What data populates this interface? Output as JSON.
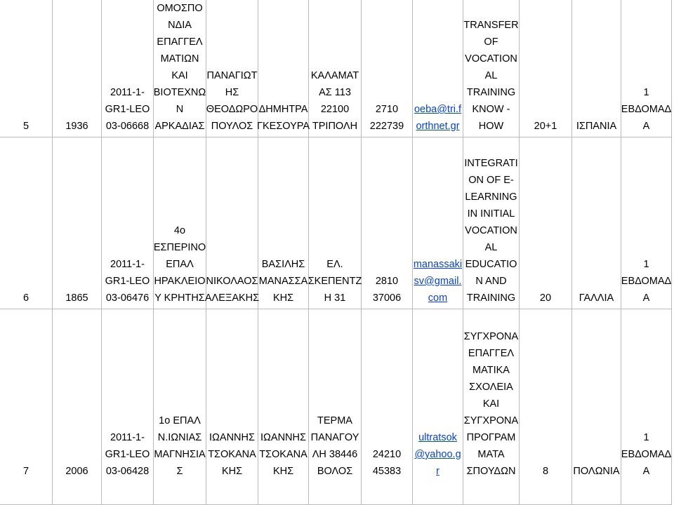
{
  "table": {
    "rows": [
      [
        [
          "5"
        ],
        [
          "1936"
        ],
        [
          "2011-1-",
          "GR1-LEO",
          "03-06668"
        ],
        [
          "ΟΜΟΣΠΟ",
          "ΝΔΙΑ",
          "ΕΠΑΓΓΕΛ",
          "ΜΑΤΙΩΝ",
          "ΚΑΙ",
          "ΒΙΟΤΕΧΝΩ",
          "Ν",
          "ΑΡΚΑΔΙΑΣ"
        ],
        [
          "ΠΑΝΑΓΙΩΤ",
          "ΗΣ",
          "ΘΕΟΔΩΡΟ",
          "ΠΟΥΛΟΣ"
        ],
        [
          "ΔΗΜΗΤΡΑ",
          "ΓΚΕΣΟΥΡΑ"
        ],
        [
          "ΚΑΛΑΜΑΤ",
          "ΑΣ 113",
          "22100",
          "ΤΡΙΠΟΛΗ"
        ],
        [
          "2710",
          "222739"
        ],
        [
          "oeba@tri.f",
          "orthnet.gr"
        ],
        [
          "TRANSFER",
          "OF",
          "VOCATION",
          "AL",
          "TRAINING",
          "KNOW -",
          "HOW"
        ],
        [
          "20+1"
        ],
        [
          "ΙΣΠΑΝΙΑ"
        ],
        [
          "1",
          "ΕΒΔΟΜΑΔ",
          "Α"
        ]
      ],
      [
        [
          "6"
        ],
        [
          "1865"
        ],
        [
          "2011-1-",
          "GR1-LEO",
          "03-06476"
        ],
        [
          "4ο",
          "ΕΣΠΕΡΙΝΟ",
          "ΕΠΑΛ",
          "ΗΡΑΚΛΕΙΟ",
          "Υ ΚΡΗΤΗΣ"
        ],
        [
          "ΝΙΚΟΛΑΟΣ",
          "ΑΛΕΞΑΚΗΣ"
        ],
        [
          "ΒΑΣΙΛΗΣ",
          "ΜΑΝΑΣΣΑ",
          "ΚΗΣ"
        ],
        [
          "ΕΛ.",
          "ΣΚΕΠΕΝΤΖ",
          "Η 31"
        ],
        [
          "2810",
          "37006"
        ],
        [
          "manassaki",
          "sv@gmail.",
          "com"
        ],
        [
          "INTEGRATI",
          "ON OF E-",
          "LEARNING",
          "IN INITIAL",
          "VOCATION",
          "AL",
          "EDUCATIO",
          "N AND",
          "TRAINING"
        ],
        [
          "20"
        ],
        [
          "ΓΑΛΛΙΑ"
        ],
        [
          "1",
          "ΕΒΔΟΜΑΔ",
          "Α"
        ]
      ],
      [
        [
          "7"
        ],
        [
          "2006"
        ],
        [
          "2011-1-",
          "GR1-LEO",
          "03-06428"
        ],
        [
          "1ο ΕΠΑΛ",
          "Ν.ΙΩΝΙΑΣ",
          "ΜΑΓΝΗΣΙΑ",
          "Σ"
        ],
        [
          "ΙΩΑΝΝΗΣ",
          "ΤΣΟΚΑΝΑ",
          "ΚΗΣ"
        ],
        [
          "ΙΩΑΝΝΗΣ",
          "ΤΣΟΚΑΝΑ",
          "ΚΗΣ"
        ],
        [
          "ΤΕΡΜΑ",
          "ΠΑΝΑΓΟΥ",
          "ΛΗ 38446",
          "ΒΟΛΟΣ"
        ],
        [
          "24210",
          "45383"
        ],
        [
          "ultratsok",
          "@yahoo.g",
          "r"
        ],
        [
          "ΣΥΓΧΡΟΝΑ",
          "ΕΠΑΓΓΕΛ",
          "ΜΑΤΙΚΑ",
          "ΣΧΟΛΕΙΑ",
          "ΚΑΙ",
          "ΣΥΓΧΡΟΝΑ",
          "ΠΡΟΓΡΑΜ",
          "ΜΑΤΑ",
          "ΣΠΟΥΔΩΝ"
        ],
        [
          "8"
        ],
        [
          "ΠΟΛΩΝΙΑ"
        ],
        [
          "1",
          "ΕΒΔΟΜΑΔ",
          "Α"
        ]
      ]
    ]
  }
}
